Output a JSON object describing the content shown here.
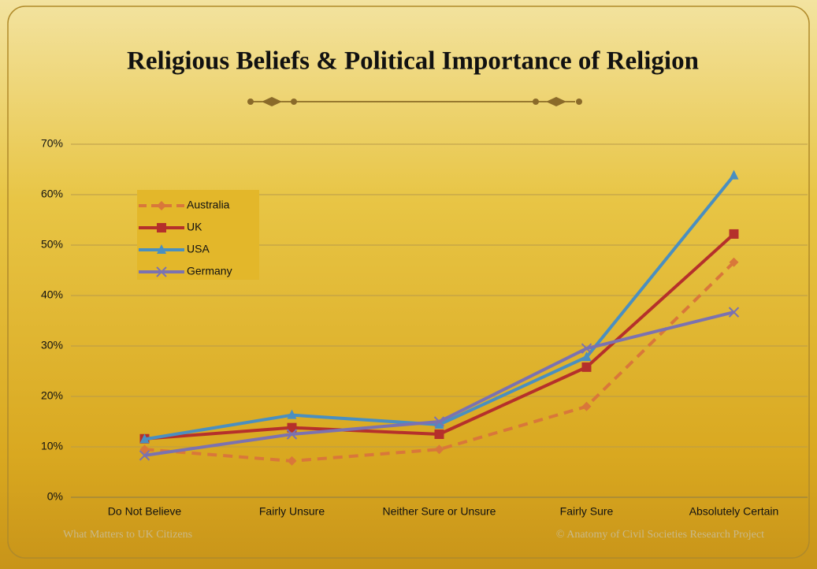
{
  "chart_data": {
    "type": "line",
    "title": "Religious Beliefs & Political Importance of Religion",
    "categories": [
      "Do Not Believe",
      "Fairly Unsure",
      "Neither Sure or Unsure",
      "Fairly Sure",
      "Absolutely Certain"
    ],
    "series": [
      {
        "name": "Australia",
        "color": "#d9773a",
        "dashed": true,
        "marker": "diamond",
        "values": [
          9.5,
          7.2,
          9.5,
          18,
          46.6
        ]
      },
      {
        "name": "UK",
        "color": "#b5302b",
        "dashed": false,
        "marker": "square",
        "values": [
          11.6,
          13.8,
          12.5,
          25.8,
          52.2
        ]
      },
      {
        "name": "USA",
        "color": "#4a8fc0",
        "dashed": false,
        "marker": "triangle",
        "values": [
          11.5,
          16.3,
          14.4,
          27.8,
          63.8
        ]
      },
      {
        "name": "Germany",
        "color": "#7b72b0",
        "dashed": false,
        "marker": "x",
        "values": [
          8.3,
          12.5,
          15,
          29.5,
          36.7
        ]
      }
    ],
    "ylim": [
      0,
      70
    ],
    "yticks": [
      {
        "value": 0,
        "label": "0%"
      },
      {
        "value": 10,
        "label": "10%"
      },
      {
        "value": 20,
        "label": "20%"
      },
      {
        "value": 30,
        "label": "30%"
      },
      {
        "value": 40,
        "label": "40%"
      },
      {
        "value": 50,
        "label": "50%"
      },
      {
        "value": 60,
        "label": "60%"
      },
      {
        "value": 70,
        "label": "70%"
      }
    ],
    "grid": true,
    "legend": "left"
  },
  "footer": {
    "left": "What Matters to UK Citizens",
    "right": "© Anatomy of Civil Societies Research Project"
  }
}
